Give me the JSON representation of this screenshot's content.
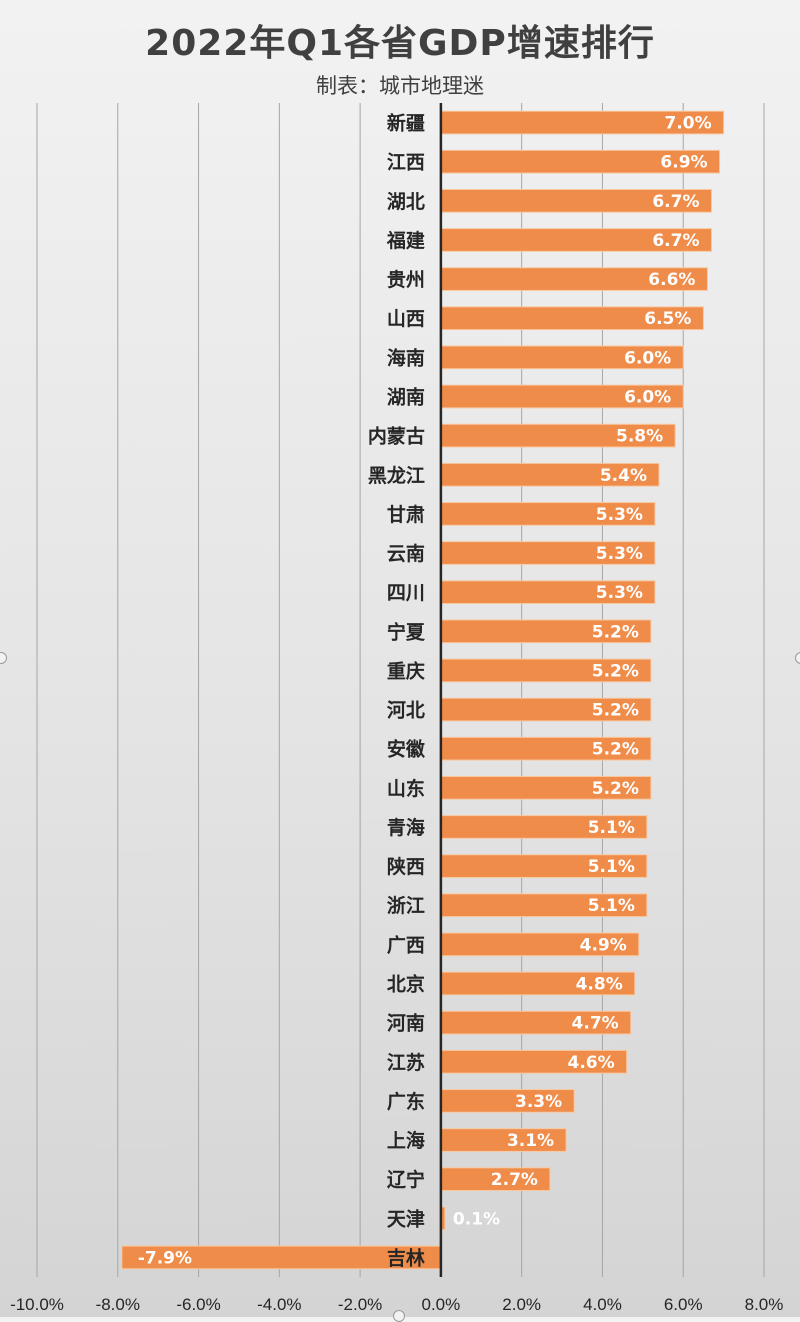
{
  "chart_data": {
    "type": "bar",
    "orientation": "horizontal",
    "title": "2022年Q1各省GDP增速排行",
    "subtitle": "制表：城市地理迷",
    "categories": [
      "新疆",
      "江西",
      "湖北",
      "福建",
      "贵州",
      "山西",
      "海南",
      "湖南",
      "内蒙古",
      "黑龙江",
      "甘肃",
      "云南",
      "四川",
      "宁夏",
      "重庆",
      "河北",
      "安徽",
      "山东",
      "青海",
      "陕西",
      "浙江",
      "广西",
      "北京",
      "河南",
      "江苏",
      "广东",
      "上海",
      "辽宁",
      "天津",
      "吉林"
    ],
    "values": [
      7.0,
      6.9,
      6.7,
      6.7,
      6.6,
      6.5,
      6.0,
      6.0,
      5.8,
      5.4,
      5.3,
      5.3,
      5.3,
      5.2,
      5.2,
      5.2,
      5.2,
      5.2,
      5.1,
      5.1,
      5.1,
      4.9,
      4.8,
      4.7,
      4.6,
      3.3,
      3.1,
      2.7,
      0.1,
      -7.9
    ],
    "data_labels": [
      "7.0%",
      "6.9%",
      "6.7%",
      "6.7%",
      "6.6%",
      "6.5%",
      "6.0%",
      "6.0%",
      "5.8%",
      "5.4%",
      "5.3%",
      "5.3%",
      "5.3%",
      "5.2%",
      "5.2%",
      "5.2%",
      "5.2%",
      "5.2%",
      "5.1%",
      "5.1%",
      "5.1%",
      "4.9%",
      "4.8%",
      "4.7%",
      "4.6%",
      "3.3%",
      "3.1%",
      "2.7%",
      "0.1%",
      "-7.9%"
    ],
    "xlim": [
      -10,
      8
    ],
    "xticks": [
      -10,
      -8,
      -6,
      -4,
      -2,
      0,
      2,
      4,
      6,
      8
    ],
    "xtick_labels": [
      "-10.0%",
      "-8.0%",
      "-6.0%",
      "-4.0%",
      "-2.0%",
      "0.0%",
      "2.0%",
      "4.0%",
      "6.0%",
      "8.0%"
    ],
    "grid": true,
    "legend": "none",
    "bar_color": "#f08c4a",
    "bar_border_color": "#f8c8a0",
    "label_color": "#ffffff",
    "category_label_color": "#262626",
    "axis_color": "#262626",
    "grid_color": "#a6a6a6"
  }
}
